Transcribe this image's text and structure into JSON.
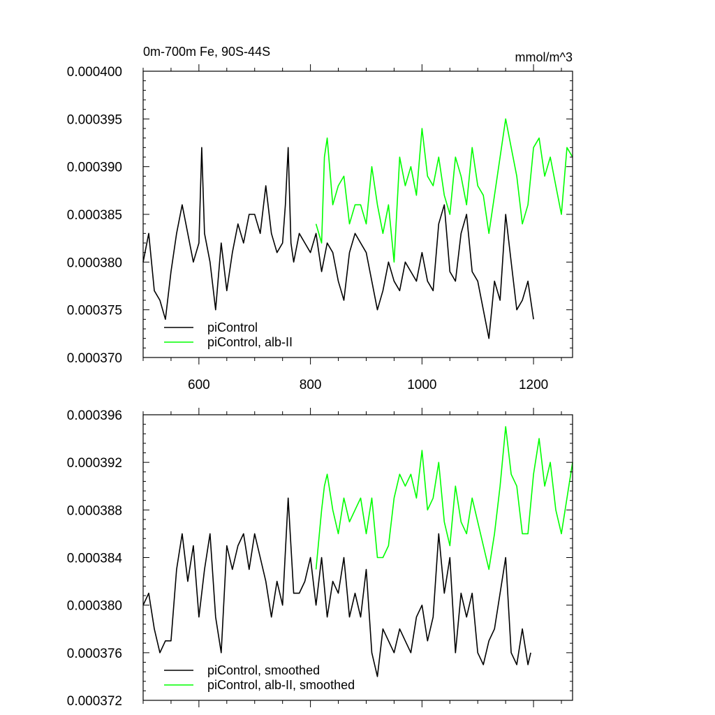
{
  "chart_data": [
    {
      "type": "line",
      "title_left": "0m-700m Fe, 90S-44S",
      "title_right": "mmol/m^3",
      "xlabel": "",
      "ylabel": "",
      "xlim": [
        500,
        1270
      ],
      "ylim": [
        0.00037,
        0.0004
      ],
      "x_ticks": [
        600,
        800,
        1000,
        1200
      ],
      "x_tick_labels": [
        "600",
        "800",
        "1000",
        "1200"
      ],
      "y_ticks": [
        0.00037,
        0.000375,
        0.00038,
        0.000385,
        0.00039,
        0.000395,
        0.0004
      ],
      "y_tick_labels": [
        "0.000370",
        "0.000375",
        "0.000380",
        "0.000385",
        "0.000390",
        "0.000395",
        "0.000400"
      ],
      "legend_position": "bottom-left",
      "series": [
        {
          "name": "piControl",
          "color": "#000000",
          "x": [
            500,
            510,
            520,
            530,
            540,
            550,
            560,
            570,
            580,
            590,
            600,
            605,
            610,
            620,
            630,
            640,
            650,
            660,
            670,
            680,
            690,
            700,
            710,
            720,
            730,
            740,
            750,
            755,
            760,
            765,
            770,
            780,
            790,
            800,
            810,
            820,
            830,
            840,
            850,
            860,
            870,
            880,
            890,
            900,
            910,
            920,
            930,
            940,
            950,
            960,
            970,
            980,
            990,
            1000,
            1010,
            1020,
            1030,
            1040,
            1050,
            1060,
            1070,
            1080,
            1090,
            1100,
            1110,
            1120,
            1125,
            1130,
            1140,
            1150,
            1160,
            1170,
            1180,
            1190,
            1200
          ],
          "values": [
            0.00038,
            0.000383,
            0.000377,
            0.000376,
            0.000374,
            0.000379,
            0.000383,
            0.000386,
            0.000383,
            0.00038,
            0.000382,
            0.000392,
            0.000383,
            0.00038,
            0.000375,
            0.000382,
            0.000377,
            0.000381,
            0.000384,
            0.000382,
            0.000385,
            0.000385,
            0.000383,
            0.000388,
            0.000383,
            0.000381,
            0.000382,
            0.000386,
            0.000392,
            0.000382,
            0.00038,
            0.000383,
            0.000382,
            0.000381,
            0.000383,
            0.000379,
            0.000382,
            0.000381,
            0.000378,
            0.000376,
            0.000381,
            0.000383,
            0.000382,
            0.000381,
            0.000378,
            0.000375,
            0.000377,
            0.00038,
            0.000378,
            0.000377,
            0.00038,
            0.000379,
            0.000378,
            0.000381,
            0.000378,
            0.000377,
            0.000384,
            0.000386,
            0.000379,
            0.000378,
            0.000383,
            0.000385,
            0.000379,
            0.000378,
            0.000375,
            0.000372,
            0.000375,
            0.000378,
            0.000376,
            0.000385,
            0.00038,
            0.000375,
            0.000376,
            0.000378,
            0.000374
          ]
        },
        {
          "name": "piControl, alb-II",
          "color": "#00ff00",
          "x": [
            810,
            820,
            825,
            830,
            840,
            850,
            860,
            870,
            880,
            890,
            900,
            910,
            920,
            930,
            940,
            950,
            960,
            970,
            980,
            990,
            1000,
            1010,
            1020,
            1030,
            1040,
            1050,
            1060,
            1070,
            1080,
            1090,
            1100,
            1110,
            1120,
            1130,
            1140,
            1150,
            1160,
            1170,
            1180,
            1190,
            1200,
            1210,
            1220,
            1230,
            1240,
            1250,
            1260,
            1270
          ],
          "values": [
            0.000384,
            0.000382,
            0.000391,
            0.000393,
            0.000386,
            0.000388,
            0.000389,
            0.000384,
            0.000386,
            0.000386,
            0.000384,
            0.00039,
            0.000386,
            0.000383,
            0.000386,
            0.00038,
            0.000391,
            0.000388,
            0.00039,
            0.000387,
            0.000394,
            0.000389,
            0.000388,
            0.000391,
            0.000387,
            0.000385,
            0.000391,
            0.000389,
            0.000386,
            0.000392,
            0.000388,
            0.000387,
            0.000383,
            0.000387,
            0.000391,
            0.000395,
            0.000392,
            0.000389,
            0.000384,
            0.000386,
            0.000392,
            0.000393,
            0.000389,
            0.000391,
            0.000388,
            0.000385,
            0.000392,
            0.000391
          ]
        }
      ]
    },
    {
      "type": "line",
      "xlabel": "",
      "ylabel": "",
      "xlim": [
        500,
        1270
      ],
      "ylim": [
        0.000372,
        0.000396
      ],
      "x_ticks": [
        600,
        800,
        1000,
        1200
      ],
      "y_ticks": [
        0.000372,
        0.000376,
        0.00038,
        0.000384,
        0.000388,
        0.000392,
        0.000396
      ],
      "y_tick_labels": [
        "0.000372",
        "0.000376",
        "0.000380",
        "0.000384",
        "0.000388",
        "0.000392",
        "0.000396"
      ],
      "legend_position": "bottom-left",
      "series": [
        {
          "name": "piControl, smoothed",
          "color": "#000000",
          "x": [
            500,
            510,
            520,
            530,
            540,
            550,
            560,
            570,
            580,
            590,
            600,
            610,
            620,
            630,
            640,
            650,
            660,
            670,
            680,
            690,
            700,
            710,
            720,
            730,
            740,
            750,
            760,
            770,
            780,
            790,
            800,
            810,
            820,
            830,
            840,
            850,
            860,
            870,
            880,
            890,
            900,
            910,
            920,
            930,
            940,
            950,
            960,
            970,
            980,
            990,
            1000,
            1010,
            1020,
            1030,
            1040,
            1050,
            1060,
            1070,
            1080,
            1090,
            1100,
            1110,
            1120,
            1130,
            1140,
            1150,
            1160,
            1170,
            1180,
            1190,
            1195
          ],
          "values": [
            0.00038,
            0.000381,
            0.000378,
            0.000376,
            0.000377,
            0.000377,
            0.000383,
            0.000386,
            0.000382,
            0.000385,
            0.000379,
            0.000383,
            0.000386,
            0.000379,
            0.000376,
            0.000385,
            0.000383,
            0.000385,
            0.000386,
            0.000383,
            0.000386,
            0.000384,
            0.000382,
            0.000379,
            0.000382,
            0.00038,
            0.000389,
            0.000381,
            0.000381,
            0.000382,
            0.000384,
            0.00038,
            0.000384,
            0.000379,
            0.000382,
            0.000381,
            0.000384,
            0.000379,
            0.000381,
            0.000379,
            0.000383,
            0.000376,
            0.000374,
            0.000378,
            0.000377,
            0.000376,
            0.000378,
            0.000377,
            0.000376,
            0.000379,
            0.00038,
            0.000377,
            0.000379,
            0.000386,
            0.000381,
            0.000384,
            0.000376,
            0.000381,
            0.000379,
            0.000381,
            0.000376,
            0.000375,
            0.000377,
            0.000378,
            0.000381,
            0.000384,
            0.000376,
            0.000375,
            0.000378,
            0.000375,
            0.000376
          ]
        },
        {
          "name": "piControl, alb-II, smoothed",
          "color": "#00ff00",
          "x": [
            810,
            820,
            825,
            830,
            840,
            850,
            860,
            870,
            880,
            890,
            900,
            910,
            920,
            930,
            940,
            950,
            960,
            970,
            980,
            990,
            1000,
            1010,
            1020,
            1030,
            1040,
            1050,
            1060,
            1070,
            1080,
            1090,
            1100,
            1110,
            1120,
            1130,
            1140,
            1150,
            1160,
            1170,
            1180,
            1190,
            1200,
            1210,
            1220,
            1230,
            1240,
            1250,
            1260,
            1270
          ],
          "values": [
            0.000383,
            0.000388,
            0.00039,
            0.000391,
            0.000388,
            0.000386,
            0.000389,
            0.000387,
            0.000388,
            0.000389,
            0.000386,
            0.000389,
            0.000384,
            0.000384,
            0.000385,
            0.000389,
            0.000391,
            0.00039,
            0.000391,
            0.000389,
            0.000393,
            0.000388,
            0.000389,
            0.000392,
            0.000387,
            0.000385,
            0.00039,
            0.000387,
            0.000386,
            0.000389,
            0.000387,
            0.000385,
            0.000383,
            0.000386,
            0.00039,
            0.000395,
            0.000391,
            0.00039,
            0.000386,
            0.000386,
            0.000391,
            0.000394,
            0.00039,
            0.000392,
            0.000388,
            0.000386,
            0.000389,
            0.000392
          ]
        }
      ]
    }
  ]
}
